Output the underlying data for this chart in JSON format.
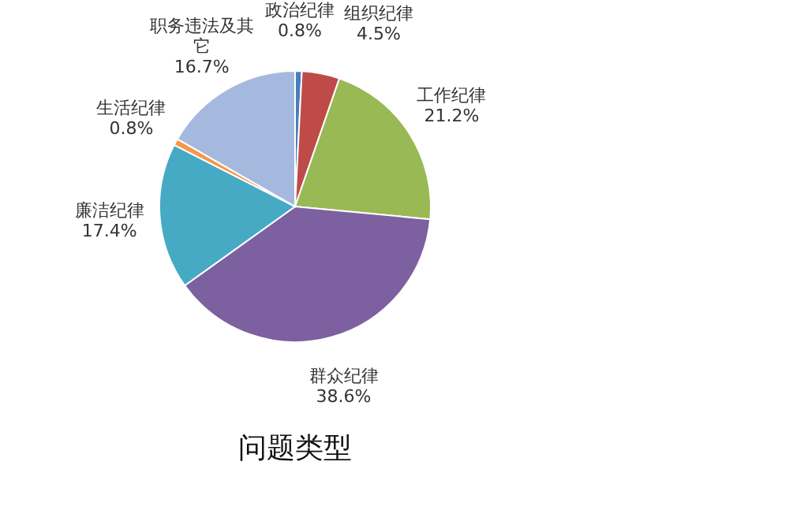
{
  "chart_data": {
    "type": "pie",
    "title": "问题类型",
    "categories": [
      "政治纪律",
      "组织纪律",
      "工作纪律",
      "群众纪律",
      "廉洁纪律",
      "生活纪律",
      "职务违法及其它"
    ],
    "values": [
      0.8,
      4.5,
      21.2,
      38.6,
      17.4,
      0.8,
      16.7
    ],
    "value_labels": [
      "0.8%",
      "4.5%",
      "21.2%",
      "38.6%",
      "17.4%",
      "0.8%",
      "16.7%"
    ],
    "colors": [
      "#4a7ebb",
      "#be4b48",
      "#98b954",
      "#7d60a0",
      "#46aac5",
      "#f79646",
      "#a5b9de"
    ],
    "legend": false
  }
}
